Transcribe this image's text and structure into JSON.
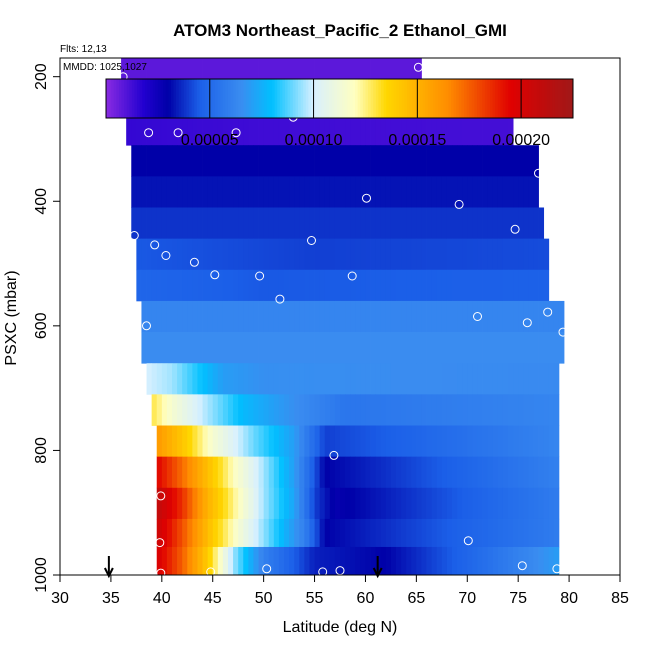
{
  "chart_data": {
    "type": "heatmap",
    "title": "ATOM3 Northeast_Pacific_2 Ethanol_GMI",
    "flights_label": "Flts: 12,13",
    "mmdd_label": "MMDD: 1025,1027",
    "xlabel": "Latitude (deg N)",
    "ylabel": "PSXC (mbar)",
    "xlim": [
      30,
      85
    ],
    "ylim": [
      1000,
      170
    ],
    "x_ticks": [
      30,
      35,
      40,
      45,
      50,
      55,
      60,
      65,
      70,
      75,
      80,
      85
    ],
    "y_ticks": [
      200,
      400,
      600,
      800,
      1000
    ],
    "colorbar": {
      "range": [
        0,
        0.000225
      ],
      "ticks": [
        5e-05,
        0.0001,
        0.00015,
        0.0002
      ],
      "tick_labels": [
        "0.00005",
        "0.00010",
        "0.00015",
        "0.00020"
      ],
      "stops": [
        {
          "v": 0.0,
          "color": "#8a2be2"
        },
        {
          "v": 1.8e-05,
          "color": "#2200d0"
        },
        {
          "v": 3e-05,
          "color": "#0000a8"
        },
        {
          "v": 4.5e-05,
          "color": "#1b5fe8"
        },
        {
          "v": 6.5e-05,
          "color": "#3a8cf0"
        },
        {
          "v": 8e-05,
          "color": "#00c0ff"
        },
        {
          "v": 0.0001,
          "color": "#d8f0ff"
        },
        {
          "v": 0.00012,
          "color": "#ffffc0"
        },
        {
          "v": 0.000135,
          "color": "#ffd700"
        },
        {
          "v": 0.000165,
          "color": "#ff8c00"
        },
        {
          "v": 0.000195,
          "color": "#e00000"
        },
        {
          "v": 0.000225,
          "color": "#a01818"
        }
      ]
    },
    "rows": [
      {
        "p_top": 170,
        "p_bot": 215,
        "lat_min": 36,
        "lat_max": 65.5,
        "profile": [
          [
            36,
            8e-06
          ],
          [
            65.5,
            8e-06
          ]
        ]
      },
      {
        "p_top": 215,
        "p_bot": 260,
        "lat_min": 36.5,
        "lat_max": 72.5,
        "profile": [
          [
            36.5,
            9e-06
          ],
          [
            72.5,
            9e-06
          ]
        ]
      },
      {
        "p_top": 260,
        "p_bot": 310,
        "lat_min": 36.5,
        "lat_max": 74.5,
        "profile": [
          [
            36.5,
            1.5e-05
          ],
          [
            50,
            1.3e-05
          ],
          [
            74.5,
            1.2e-05
          ]
        ]
      },
      {
        "p_top": 310,
        "p_bot": 360,
        "lat_min": 37,
        "lat_max": 77,
        "profile": [
          [
            37,
            3e-05
          ],
          [
            77,
            3e-05
          ]
        ]
      },
      {
        "p_top": 360,
        "p_bot": 410,
        "lat_min": 37,
        "lat_max": 77,
        "profile": [
          [
            37,
            3.3e-05
          ],
          [
            77,
            3.3e-05
          ]
        ]
      },
      {
        "p_top": 410,
        "p_bot": 460,
        "lat_min": 37,
        "lat_max": 77.5,
        "profile": [
          [
            37,
            3.8e-05
          ],
          [
            77.5,
            3.8e-05
          ]
        ]
      },
      {
        "p_top": 460,
        "p_bot": 510,
        "lat_min": 37.5,
        "lat_max": 78,
        "profile": [
          [
            37.5,
            4.4e-05
          ],
          [
            55,
            4e-05
          ],
          [
            78,
            4.2e-05
          ]
        ]
      },
      {
        "p_top": 510,
        "p_bot": 560,
        "lat_min": 37.5,
        "lat_max": 78,
        "profile": [
          [
            37.5,
            4.8e-05
          ],
          [
            50,
            4.4e-05
          ],
          [
            78,
            4.6e-05
          ]
        ]
      },
      {
        "p_top": 560,
        "p_bot": 610,
        "lat_min": 38,
        "lat_max": 79.5,
        "profile": [
          [
            38,
            6.2e-05
          ],
          [
            79.5,
            6.2e-05
          ]
        ]
      },
      {
        "p_top": 610,
        "p_bot": 660,
        "lat_min": 38,
        "lat_max": 79.5,
        "profile": [
          [
            38,
            6.5e-05
          ],
          [
            79.5,
            6.5e-05
          ]
        ]
      },
      {
        "p_top": 660,
        "p_bot": 710,
        "lat_min": 38.5,
        "lat_max": 79,
        "profile": [
          [
            38.5,
            0.0001
          ],
          [
            41,
            9.5e-05
          ],
          [
            43,
            8.5e-05
          ],
          [
            46,
            7e-05
          ],
          [
            50,
            6.6e-05
          ],
          [
            79,
            6.4e-05
          ]
        ]
      },
      {
        "p_top": 710,
        "p_bot": 760,
        "lat_min": 39,
        "lat_max": 79,
        "profile": [
          [
            39,
            0.00013
          ],
          [
            41,
            0.000115
          ],
          [
            44,
            9.8e-05
          ],
          [
            48,
            7.8e-05
          ],
          [
            52,
            6.8e-05
          ],
          [
            58,
            5.5e-05
          ],
          [
            79,
            6.2e-05
          ]
        ]
      },
      {
        "p_top": 760,
        "p_bot": 810,
        "lat_min": 39.5,
        "lat_max": 79,
        "profile": [
          [
            39.5,
            0.00016
          ],
          [
            42,
            0.000142
          ],
          [
            45,
            0.000115
          ],
          [
            49,
            9e-05
          ],
          [
            53,
            7e-05
          ],
          [
            56,
            4e-05
          ],
          [
            62,
            4.5e-05
          ],
          [
            79,
            6.2e-05
          ]
        ]
      },
      {
        "p_top": 810,
        "p_bot": 860,
        "lat_min": 39.5,
        "lat_max": 79,
        "profile": [
          [
            39.5,
            0.000195
          ],
          [
            42,
            0.000172
          ],
          [
            44.5,
            0.000145
          ],
          [
            47,
            0.00012
          ],
          [
            50,
            9.5e-05
          ],
          [
            53,
            7e-05
          ],
          [
            56,
            3e-05
          ],
          [
            60,
            3.5e-05
          ],
          [
            79,
            6e-05
          ]
        ]
      },
      {
        "p_top": 860,
        "p_bot": 910,
        "lat_min": 39.5,
        "lat_max": 79,
        "profile": [
          [
            39.5,
            0.00021
          ],
          [
            42,
            0.000185
          ],
          [
            44.5,
            0.00015
          ],
          [
            47,
            0.000125
          ],
          [
            50,
            9.5e-05
          ],
          [
            53,
            7.2e-05
          ],
          [
            55,
            4e-05
          ],
          [
            57,
            2.8e-05
          ],
          [
            79,
            5.8e-05
          ]
        ]
      },
      {
        "p_top": 910,
        "p_bot": 955,
        "lat_min": 39.5,
        "lat_max": 79,
        "profile": [
          [
            39.5,
            0.000205
          ],
          [
            42,
            0.000178
          ],
          [
            45,
            0.00014
          ],
          [
            48,
            0.00011
          ],
          [
            51,
            8.5e-05
          ],
          [
            54,
            6e-05
          ],
          [
            56,
            3e-05
          ],
          [
            79,
            5.8e-05
          ]
        ]
      },
      {
        "p_top": 955,
        "p_bot": 1000,
        "lat_min": 39.5,
        "lat_max": 79,
        "profile": [
          [
            39.5,
            0.0002
          ],
          [
            42,
            0.000175
          ],
          [
            44.5,
            0.00014
          ],
          [
            47,
            9.5e-05
          ],
          [
            50,
            6e-05
          ],
          [
            55,
            3.5e-05
          ],
          [
            62,
            3e-05
          ],
          [
            70,
            4.8e-05
          ],
          [
            79,
            7e-05
          ]
        ]
      }
    ],
    "observations": [
      {
        "lat": 36.2,
        "p": 200
      },
      {
        "lat": 65.2,
        "p": 185
      },
      {
        "lat": 72.2,
        "p": 228
      },
      {
        "lat": 52.9,
        "p": 265
      },
      {
        "lat": 38.7,
        "p": 290
      },
      {
        "lat": 41.6,
        "p": 290
      },
      {
        "lat": 47.3,
        "p": 290
      },
      {
        "lat": 77.0,
        "p": 355
      },
      {
        "lat": 60.1,
        "p": 395
      },
      {
        "lat": 69.2,
        "p": 405
      },
      {
        "lat": 74.7,
        "p": 445
      },
      {
        "lat": 37.3,
        "p": 455
      },
      {
        "lat": 39.3,
        "p": 470
      },
      {
        "lat": 40.4,
        "p": 487
      },
      {
        "lat": 54.7,
        "p": 463
      },
      {
        "lat": 43.2,
        "p": 498
      },
      {
        "lat": 45.2,
        "p": 518
      },
      {
        "lat": 49.6,
        "p": 520
      },
      {
        "lat": 58.7,
        "p": 520
      },
      {
        "lat": 51.6,
        "p": 557
      },
      {
        "lat": 77.9,
        "p": 578
      },
      {
        "lat": 71.0,
        "p": 585
      },
      {
        "lat": 75.9,
        "p": 595
      },
      {
        "lat": 38.5,
        "p": 600
      },
      {
        "lat": 79.4,
        "p": 610
      },
      {
        "lat": 56.9,
        "p": 808
      },
      {
        "lat": 39.9,
        "p": 873
      },
      {
        "lat": 39.8,
        "p": 948
      },
      {
        "lat": 70.1,
        "p": 945
      },
      {
        "lat": 50.3,
        "p": 990
      },
      {
        "lat": 75.4,
        "p": 985
      },
      {
        "lat": 78.8,
        "p": 990
      },
      {
        "lat": 39.9,
        "p": 997
      },
      {
        "lat": 44.8,
        "p": 995
      },
      {
        "lat": 55.8,
        "p": 995
      },
      {
        "lat": 57.5,
        "p": 993
      }
    ],
    "arrows": [
      {
        "lat": 34.8
      },
      {
        "lat": 61.2
      }
    ]
  }
}
